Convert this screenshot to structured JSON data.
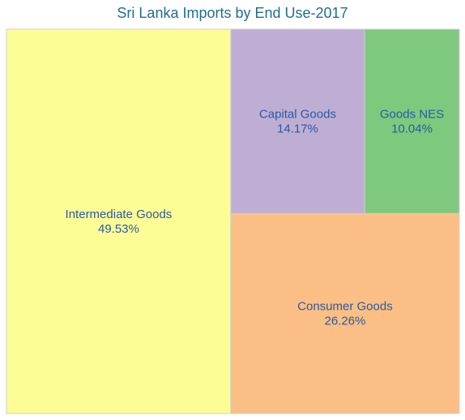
{
  "chart_data": {
    "type": "treemap",
    "title": "Sri Lanka Imports by End Use-2017",
    "label_color": "#2a5aa0",
    "items": [
      {
        "name": "Intermediate Goods",
        "value": 49.53,
        "value_label": "49.53%",
        "color": "#fdfd96"
      },
      {
        "name": "Capital Goods",
        "value": 14.17,
        "value_label": "14.17%",
        "color": "#bfaed4"
      },
      {
        "name": "Goods NES",
        "value": 10.04,
        "value_label": "10.04%",
        "color": "#7fc97f"
      },
      {
        "name": "Consumer Goods",
        "value": 26.26,
        "value_label": "26.26%",
        "color": "#fbbf85"
      }
    ]
  }
}
